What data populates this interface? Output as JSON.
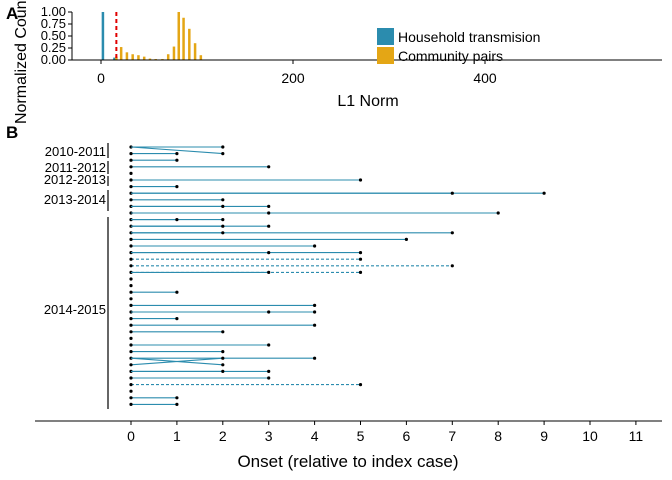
{
  "panels": {
    "a_label": "A",
    "b_label": "B"
  },
  "colors": {
    "household": "#2b8cae",
    "community": "#e4a615",
    "threshold": "#e00000",
    "point": "#000000",
    "axis": "#000000"
  },
  "chart_data": [
    {
      "id": "A",
      "type": "bar",
      "xlabel": "L1 Norm",
      "ylabel": "Normalized Count",
      "xlim": [
        -25,
        570
      ],
      "ylim": [
        0,
        1.0
      ],
      "xticks": [
        0,
        200,
        400
      ],
      "yticks": [
        "0.00",
        "0.25",
        "0.50",
        "0.75",
        "1.00"
      ],
      "threshold_x": 16,
      "legend": {
        "position": "right",
        "entries": [
          "Household transmision",
          "Community pairs"
        ]
      },
      "series": [
        {
          "name": "Household transmision",
          "x": [
            2,
            14
          ],
          "values": [
            1.0,
            0.05
          ]
        },
        {
          "name": "Community pairs",
          "x": [
            16,
            21,
            27,
            33,
            39,
            45,
            51,
            57,
            64,
            70,
            76,
            81,
            86,
            92,
            98,
            104
          ],
          "values": [
            0.07,
            0.27,
            0.16,
            0.12,
            0.1,
            0.07,
            0.03,
            0.02,
            0.02,
            0.12,
            0.28,
            1.0,
            0.88,
            0.65,
            0.35,
            0.1
          ]
        }
      ]
    },
    {
      "id": "B",
      "type": "line",
      "xlabel": "Onset (relative to index case)",
      "xlim": [
        -2.2,
        11.6
      ],
      "xticks": [
        0,
        1,
        2,
        3,
        4,
        5,
        6,
        7,
        8,
        9,
        10,
        11
      ],
      "groups": [
        {
          "label": "2010-2011",
          "rows": [
            0,
            3
          ]
        },
        {
          "label": "2011-2012",
          "rows": [
            4,
            5
          ]
        },
        {
          "label": "2012-2013",
          "rows": [
            6,
            8
          ]
        },
        {
          "label": "2013-2014",
          "rows": [
            9,
            11
          ]
        },
        {
          "label": "2014-2015",
          "rows": [
            12,
            48
          ]
        }
      ],
      "pairs": [
        {
          "row": 0,
          "from": 0,
          "to": 2,
          "to_row": 0,
          "style": "solid"
        },
        {
          "row": 0,
          "from": 0,
          "to": 2,
          "to_row": 1,
          "style": "solid"
        },
        {
          "row": 1,
          "from": 0,
          "to": 1,
          "style": "solid"
        },
        {
          "row": 2,
          "from": 0,
          "to": 1,
          "style": "solid"
        },
        {
          "row": 3,
          "from": 0,
          "to": 3,
          "style": "solid"
        },
        {
          "row": 4,
          "from": 0,
          "to": 0,
          "style": "solid"
        },
        {
          "row": 5,
          "from": 0,
          "to": 5,
          "style": "solid"
        },
        {
          "row": 6,
          "from": 0,
          "to": 1,
          "style": "solid"
        },
        {
          "row": 7,
          "from": 0,
          "to": 9,
          "to_row": 7,
          "style": "solid"
        },
        {
          "row": 7,
          "from": 0,
          "to": 7,
          "to_row": 7,
          "style": "solid"
        },
        {
          "row": 8,
          "from": 0,
          "to": 2,
          "style": "solid"
        },
        {
          "row": 9,
          "from": 0,
          "to": 3,
          "to_row": 9,
          "style": "solid"
        },
        {
          "row": 9,
          "from": 0,
          "to": 2,
          "to_row": 9,
          "style": "solid"
        },
        {
          "row": 10,
          "from": 0,
          "to": 8,
          "to_row": 10,
          "style": "solid"
        },
        {
          "row": 10,
          "from": 0,
          "to": 3,
          "to_row": 10,
          "style": "solid"
        },
        {
          "row": 11,
          "from": 0,
          "to": 2,
          "to_row": 11,
          "style": "solid"
        },
        {
          "row": 11,
          "from": 0,
          "to": 1,
          "to_row": 11,
          "style": "solid"
        },
        {
          "row": 12,
          "from": 0,
          "to": 3,
          "to_row": 12,
          "style": "solid"
        },
        {
          "row": 12,
          "from": 0,
          "to": 2,
          "to_row": 12,
          "style": "solid"
        },
        {
          "row": 13,
          "from": 0,
          "to": 7,
          "to_row": 13,
          "style": "solid"
        },
        {
          "row": 13,
          "from": 0,
          "to": 2,
          "to_row": 13,
          "style": "solid"
        },
        {
          "row": 14,
          "from": 0,
          "to": 6,
          "style": "solid"
        },
        {
          "row": 15,
          "from": 0,
          "to": 4,
          "style": "solid"
        },
        {
          "row": 16,
          "from": 0,
          "to": 5,
          "to_row": 16,
          "style": "solid"
        },
        {
          "row": 16,
          "from": 0,
          "to": 3,
          "to_row": 16,
          "style": "solid"
        },
        {
          "row": 17,
          "from": 0,
          "to": 5,
          "style": "dashed"
        },
        {
          "row": 18,
          "from": 0,
          "to": 7,
          "style": "dashed"
        },
        {
          "row": 19,
          "from": 0,
          "to": 5,
          "to_row": 19,
          "style": "dashed"
        },
        {
          "row": 19,
          "from": 0,
          "to": 3,
          "to_row": 19,
          "style": "solid"
        },
        {
          "row": 20,
          "from": 0,
          "to": 0,
          "style": "solid"
        },
        {
          "row": 21,
          "from": 0,
          "to": 0,
          "style": "solid"
        },
        {
          "row": 22,
          "from": 0,
          "to": 1,
          "style": "solid"
        },
        {
          "row": 23,
          "from": 0,
          "to": 0,
          "style": "solid"
        },
        {
          "row": 24,
          "from": 0,
          "to": 4,
          "to_row": 24,
          "style": "solid"
        },
        {
          "row": 25,
          "from": 0,
          "to": 4,
          "to_row": 25,
          "style": "solid"
        },
        {
          "row": 25,
          "from": 0,
          "to": 3,
          "to_row": 25,
          "style": "solid"
        },
        {
          "row": 26,
          "from": 0,
          "to": 1,
          "style": "solid"
        },
        {
          "row": 27,
          "from": 0,
          "to": 4,
          "style": "solid"
        },
        {
          "row": 28,
          "from": 0,
          "to": 2,
          "style": "solid"
        },
        {
          "row": 29,
          "from": 0,
          "to": 0,
          "style": "solid"
        },
        {
          "row": 30,
          "from": 0,
          "to": 3,
          "style": "solid"
        },
        {
          "row": 31,
          "from": 0,
          "to": 2,
          "style": "solid"
        },
        {
          "row": 32,
          "from": 0,
          "to": 4,
          "to_row": 32,
          "style": "solid"
        },
        {
          "row": 32,
          "from": 0,
          "to": 2,
          "to_row": 33,
          "style": "solid"
        },
        {
          "row": 33,
          "from": 0,
          "to": 2,
          "to_row": 32,
          "style": "solid"
        },
        {
          "row": 34,
          "from": 0,
          "to": 3,
          "to_row": 34,
          "style": "solid"
        },
        {
          "row": 34,
          "from": 0,
          "to": 2,
          "to_row": 34,
          "style": "solid"
        },
        {
          "row": 35,
          "from": 0,
          "to": 3,
          "style": "solid"
        },
        {
          "row": 36,
          "from": 0,
          "to": 5,
          "style": "dashed"
        },
        {
          "row": 37,
          "from": 0,
          "to": 0,
          "style": "solid"
        },
        {
          "row": 38,
          "from": 0,
          "to": 1,
          "style": "solid"
        },
        {
          "row": 39,
          "from": 0,
          "to": 1,
          "style": "solid"
        }
      ]
    }
  ]
}
